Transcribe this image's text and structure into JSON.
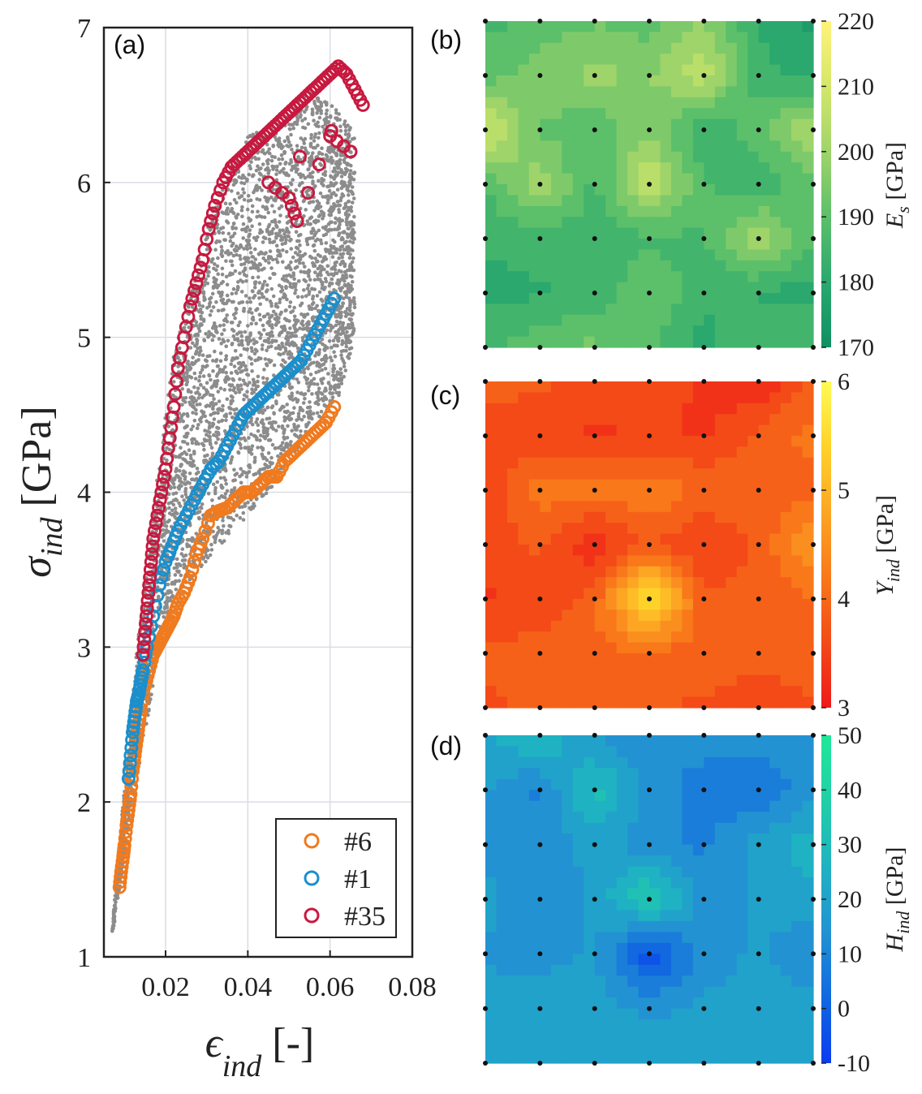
{
  "colors": {
    "gray": "#8c8c8c",
    "orange": "#f07a1e",
    "blue": "#1b8fcc",
    "red": "#c8193f",
    "frame": "#222222",
    "grid": "#d9dde4"
  },
  "chart_data": [
    {
      "panel_label": "(a)",
      "type": "scatter",
      "xlabel": {
        "sym": "ϵ",
        "sub": "ind",
        "unit": " [-]"
      },
      "ylabel": {
        "sym": "σ",
        "sub": "ind",
        "unit": " [GPa]"
      },
      "xlim": [
        0.005,
        0.08
      ],
      "ylim": [
        1,
        7
      ],
      "xticks": [
        "0.02",
        "0.04",
        "0.06",
        "0.08"
      ],
      "xtick_values": [
        0.02,
        0.04,
        0.06,
        0.08
      ],
      "yticks": [
        "1",
        "2",
        "3",
        "4",
        "5",
        "6",
        "7"
      ],
      "ytick_values": [
        1,
        2,
        3,
        4,
        5,
        6,
        7
      ],
      "grid": true,
      "legend_position": "bottom-right",
      "background_cloud": {
        "color": "gray",
        "lower_envelope": [
          [
            0.007,
            1.12
          ],
          [
            0.012,
            2.0
          ],
          [
            0.018,
            2.9
          ],
          [
            0.025,
            3.4
          ],
          [
            0.035,
            3.7
          ],
          [
            0.045,
            4.0
          ],
          [
            0.055,
            4.4
          ],
          [
            0.062,
            4.6
          ],
          [
            0.066,
            5.0
          ]
        ],
        "upper_envelope": [
          [
            0.007,
            1.2
          ],
          [
            0.01,
            2.1
          ],
          [
            0.013,
            3.0
          ],
          [
            0.018,
            4.1
          ],
          [
            0.022,
            4.9
          ],
          [
            0.027,
            5.4
          ],
          [
            0.033,
            6.0
          ],
          [
            0.04,
            6.3
          ],
          [
            0.048,
            6.4
          ],
          [
            0.055,
            6.6
          ],
          [
            0.063,
            6.45
          ],
          [
            0.068,
            6.2
          ]
        ]
      },
      "series": [
        {
          "name": "#6",
          "color": "orange",
          "points": [
            [
              0.0088,
              1.45
            ],
            [
              0.0092,
              1.55
            ],
            [
              0.0097,
              1.65
            ],
            [
              0.01,
              1.72
            ],
            [
              0.0105,
              1.85
            ],
            [
              0.011,
              1.95
            ],
            [
              0.0115,
              2.05
            ],
            [
              0.012,
              2.2
            ],
            [
              0.0125,
              2.3
            ],
            [
              0.013,
              2.4
            ],
            [
              0.0135,
              2.5
            ],
            [
              0.014,
              2.6
            ],
            [
              0.015,
              2.75
            ],
            [
              0.016,
              2.85
            ],
            [
              0.017,
              2.95
            ],
            [
              0.018,
              3.0
            ],
            [
              0.019,
              3.05
            ],
            [
              0.02,
              3.1
            ],
            [
              0.021,
              3.15
            ],
            [
              0.022,
              3.2
            ],
            [
              0.023,
              3.28
            ],
            [
              0.0245,
              3.35
            ],
            [
              0.026,
              3.45
            ],
            [
              0.0275,
              3.6
            ],
            [
              0.029,
              3.7
            ],
            [
              0.031,
              3.85
            ],
            [
              0.033,
              3.88
            ],
            [
              0.035,
              3.9
            ],
            [
              0.037,
              3.95
            ],
            [
              0.039,
              4.0
            ],
            [
              0.041,
              4.0
            ],
            [
              0.043,
              4.05
            ],
            [
              0.045,
              4.1
            ],
            [
              0.047,
              4.1
            ],
            [
              0.049,
              4.2
            ],
            [
              0.051,
              4.25
            ],
            [
              0.053,
              4.3
            ],
            [
              0.055,
              4.35
            ],
            [
              0.057,
              4.4
            ],
            [
              0.059,
              4.45
            ],
            [
              0.061,
              4.55
            ]
          ]
        },
        {
          "name": "#1",
          "color": "blue",
          "points": [
            [
              0.011,
              2.15
            ],
            [
              0.0115,
              2.3
            ],
            [
              0.012,
              2.45
            ],
            [
              0.0125,
              2.55
            ],
            [
              0.013,
              2.65
            ],
            [
              0.0135,
              2.7
            ],
            [
              0.014,
              2.78
            ],
            [
              0.0145,
              2.85
            ],
            [
              0.0155,
              3.0
            ],
            [
              0.017,
              3.2
            ],
            [
              0.0185,
              3.4
            ],
            [
              0.02,
              3.55
            ],
            [
              0.0215,
              3.65
            ],
            [
              0.023,
              3.75
            ],
            [
              0.025,
              3.85
            ],
            [
              0.027,
              3.95
            ],
            [
              0.029,
              4.05
            ],
            [
              0.031,
              4.15
            ],
            [
              0.033,
              4.2
            ],
            [
              0.035,
              4.3
            ],
            [
              0.037,
              4.4
            ],
            [
              0.039,
              4.5
            ],
            [
              0.041,
              4.55
            ],
            [
              0.043,
              4.6
            ],
            [
              0.045,
              4.65
            ],
            [
              0.047,
              4.7
            ],
            [
              0.049,
              4.75
            ],
            [
              0.051,
              4.8
            ],
            [
              0.053,
              4.85
            ],
            [
              0.055,
              4.95
            ],
            [
              0.057,
              5.05
            ],
            [
              0.059,
              5.15
            ],
            [
              0.061,
              5.25
            ]
          ]
        },
        {
          "name": "#35",
          "color": "red",
          "points": [
            [
              0.0145,
              2.95
            ],
            [
              0.015,
              3.1
            ],
            [
              0.0155,
              3.25
            ],
            [
              0.016,
              3.4
            ],
            [
              0.0165,
              3.55
            ],
            [
              0.017,
              3.7
            ],
            [
              0.018,
              3.85
            ],
            [
              0.019,
              4.0
            ],
            [
              0.02,
              4.15
            ],
            [
              0.021,
              4.35
            ],
            [
              0.022,
              4.55
            ],
            [
              0.023,
              4.8
            ],
            [
              0.0245,
              5.0
            ],
            [
              0.026,
              5.2
            ],
            [
              0.0275,
              5.35
            ],
            [
              0.029,
              5.5
            ],
            [
              0.0305,
              5.7
            ],
            [
              0.032,
              5.85
            ],
            [
              0.034,
              6.0
            ],
            [
              0.036,
              6.1
            ],
            [
              0.038,
              6.15
            ],
            [
              0.04,
              6.2
            ],
            [
              0.042,
              6.25
            ],
            [
              0.044,
              6.3
            ],
            [
              0.046,
              6.35
            ],
            [
              0.048,
              6.4
            ],
            [
              0.05,
              6.45
            ],
            [
              0.052,
              6.5
            ],
            [
              0.054,
              6.55
            ],
            [
              0.056,
              6.6
            ],
            [
              0.058,
              6.65
            ],
            [
              0.06,
              6.7
            ],
            [
              0.062,
              6.75
            ],
            [
              0.064,
              6.7
            ],
            [
              0.066,
              6.6
            ],
            [
              0.068,
              6.5
            ],
            [
              0.045,
              6.0
            ],
            [
              0.05,
              5.9
            ],
            [
              0.052,
              5.75
            ],
            [
              0.06,
              6.3
            ],
            [
              0.065,
              6.2
            ]
          ]
        }
      ]
    },
    {
      "panel_label": "(b)",
      "type": "heatmap",
      "colorbar_label": {
        "sym": "E",
        "sub": "s",
        "unit": " [GPa]"
      },
      "colorbar_ticks": [
        "220",
        "210",
        "200",
        "190",
        "180",
        "170"
      ],
      "colorbar_range": [
        170,
        220
      ],
      "colormap": [
        "#0f8f63",
        "#2aa86e",
        "#5cbf6a",
        "#9fd46a",
        "#d4e76a",
        "#fff37a"
      ],
      "grid_markers": "7x7 black dots",
      "values": [
        [
          186,
          189,
          192,
          190,
          198,
          182,
          176
        ],
        [
          190,
          196,
          199,
          197,
          206,
          184,
          180
        ],
        [
          210,
          192,
          188,
          196,
          183,
          190,
          205
        ],
        [
          188,
          201,
          186,
          208,
          188,
          184,
          190
        ],
        [
          183,
          184,
          185,
          186,
          187,
          202,
          187
        ],
        [
          181,
          182,
          183,
          193,
          183,
          182,
          180
        ],
        [
          186,
          191,
          194,
          188,
          181,
          187,
          188
        ]
      ]
    },
    {
      "panel_label": "(c)",
      "type": "heatmap",
      "colorbar_label": {
        "sym": "Y",
        "sub": "ind",
        "unit": " [GPa]"
      },
      "colorbar_ticks": [
        "6",
        "5",
        "4",
        "3"
      ],
      "colorbar_range": [
        3,
        6
      ],
      "colormap": [
        "#ee1a1a",
        "#f34a18",
        "#f8781a",
        "#fca624",
        "#ffd22a",
        "#fffb55"
      ],
      "grid_markers": "7x7 black dots",
      "values": [
        [
          3.9,
          3.8,
          3.6,
          3.6,
          3.4,
          3.2,
          3.8
        ],
        [
          3.6,
          3.5,
          3.4,
          3.5,
          3.4,
          3.8,
          4.2
        ],
        [
          3.5,
          4.2,
          4.2,
          4.3,
          4.0,
          4.0,
          3.9
        ],
        [
          3.6,
          3.8,
          3.2,
          3.8,
          3.4,
          3.8,
          4.7
        ],
        [
          3.4,
          3.5,
          3.9,
          5.9,
          3.8,
          3.9,
          4.0
        ],
        [
          3.8,
          3.9,
          4.0,
          4.0,
          3.9,
          3.8,
          3.9
        ],
        [
          3.7,
          3.8,
          3.8,
          3.8,
          3.7,
          3.6,
          3.7
        ]
      ]
    },
    {
      "panel_label": "(d)",
      "type": "heatmap",
      "colorbar_label": {
        "sym": "H",
        "sub": "ind",
        "unit": " [GPa]"
      },
      "colorbar_ticks": [
        "50",
        "40",
        "30",
        "20",
        "10",
        "0",
        "-10"
      ],
      "colorbar_range": [
        -10,
        50
      ],
      "colormap": [
        "#0a3cf0",
        "#1168e0",
        "#2392d2",
        "#1fb2c2",
        "#20cfa6",
        "#1fe89a"
      ],
      "grid_markers": "7x7 black dots",
      "values": [
        [
          22,
          30,
          16,
          12,
          14,
          17,
          10
        ],
        [
          18,
          10,
          32,
          14,
          8,
          4,
          16
        ],
        [
          14,
          12,
          20,
          13,
          10,
          20,
          26
        ],
        [
          20,
          10,
          18,
          38,
          14,
          18,
          22
        ],
        [
          16,
          14,
          18,
          -6,
          14,
          18,
          10
        ],
        [
          20,
          22,
          20,
          16,
          18,
          20,
          22
        ],
        [
          21,
          23,
          20,
          19,
          21,
          22,
          20
        ]
      ]
    }
  ]
}
